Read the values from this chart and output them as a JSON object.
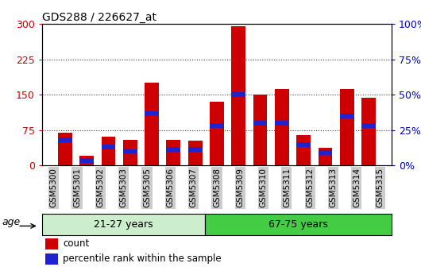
{
  "title": "GDS288 / 226627_at",
  "categories": [
    "GSM5300",
    "GSM5301",
    "GSM5302",
    "GSM5303",
    "GSM5305",
    "GSM5306",
    "GSM5307",
    "GSM5308",
    "GSM5309",
    "GSM5310",
    "GSM5311",
    "GSM5312",
    "GSM5313",
    "GSM5314",
    "GSM5315"
  ],
  "count_values": [
    70,
    20,
    62,
    55,
    175,
    55,
    52,
    135,
    295,
    150,
    163,
    65,
    38,
    163,
    143
  ],
  "percentile_values": [
    55,
    10,
    40,
    30,
    110,
    35,
    35,
    85,
    150,
    90,
    90,
    45,
    28,
    105,
    85
  ],
  "group1_label": "21-27 years",
  "group2_label": "67-75 years",
  "group1_count": 7,
  "group2_count": 8,
  "age_label": "age",
  "left_yticks": [
    0,
    75,
    150,
    225,
    300
  ],
  "right_yticks": [
    0,
    25,
    50,
    75,
    100
  ],
  "ylim_left": [
    0,
    300
  ],
  "bar_color": "#cc0000",
  "blue_color": "#2222cc",
  "group1_bg": "#cceecc",
  "group2_bg": "#44cc44",
  "tick_bg": "#cccccc",
  "grid_color": "#333333",
  "title_color": "#000000",
  "left_tick_color": "#cc0000",
  "right_tick_color": "#0000cc",
  "legend_count_label": "count",
  "legend_pct_label": "percentile rank within the sample"
}
